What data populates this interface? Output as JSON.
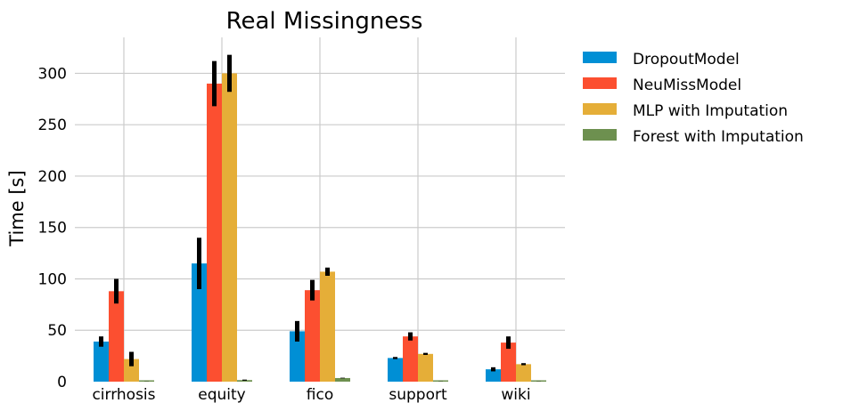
{
  "chart_data": {
    "type": "bar",
    "title": "Real Missingness",
    "xlabel": "",
    "ylabel": "Time [s]",
    "ylim": [
      0,
      335
    ],
    "yticks": [
      0,
      50,
      100,
      150,
      200,
      250,
      300
    ],
    "grid": true,
    "legend_position": "outside-right",
    "categories": [
      "cirrhosis",
      "equity",
      "fico",
      "support",
      "wiki"
    ],
    "series": [
      {
        "name": "DropoutModel",
        "color": "#008fd5",
        "values": [
          39,
          115,
          49,
          23,
          12
        ],
        "errors": [
          5,
          25,
          10,
          1,
          2
        ]
      },
      {
        "name": "NeuMissModel",
        "color": "#fc4f30",
        "values": [
          88,
          290,
          89,
          44,
          38
        ],
        "errors": [
          12,
          22,
          10,
          4,
          6
        ]
      },
      {
        "name": "MLP with Imputation",
        "color": "#e5ae38",
        "values": [
          22,
          300,
          107,
          27,
          17
        ],
        "errors": [
          7,
          18,
          4,
          1,
          1
        ]
      },
      {
        "name": "Forest with Imputation",
        "color": "#6d904f",
        "values": [
          0.3,
          1.5,
          3.5,
          0.3,
          0.3
        ],
        "errors": [
          0.1,
          0.5,
          0.3,
          0.1,
          0.1
        ]
      }
    ]
  }
}
